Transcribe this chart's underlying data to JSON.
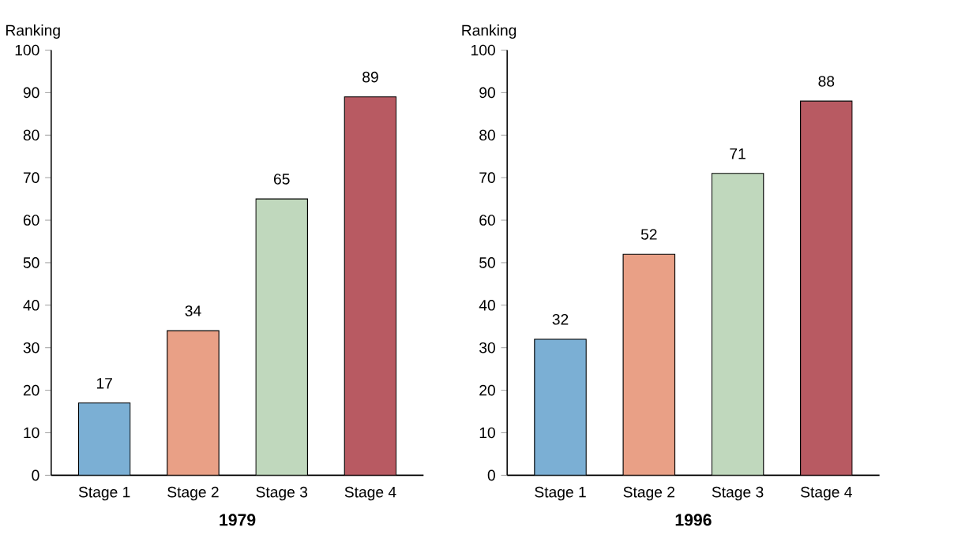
{
  "chart_data": [
    {
      "type": "bar",
      "xlabel": "1979",
      "ylabel": "Ranking",
      "categories": [
        "Stage 1",
        "Stage 2",
        "Stage 3",
        "Stage 4"
      ],
      "values": [
        17,
        34,
        65,
        89
      ],
      "colors": [
        "#7bafd4",
        "#e9a086",
        "#c0d8bd",
        "#b85a62"
      ],
      "ylim": [
        0,
        100
      ],
      "yticks": [
        0,
        10,
        20,
        30,
        40,
        50,
        60,
        70,
        80,
        90,
        100
      ],
      "data_labels": true
    },
    {
      "type": "bar",
      "xlabel": "1996",
      "ylabel": "Ranking",
      "categories": [
        "Stage 1",
        "Stage 2",
        "Stage 3",
        "Stage 4"
      ],
      "values": [
        32,
        52,
        71,
        88
      ],
      "colors": [
        "#7bafd4",
        "#e9a086",
        "#c0d8bd",
        "#b85a62"
      ],
      "ylim": [
        0,
        100
      ],
      "yticks": [
        0,
        10,
        20,
        30,
        40,
        50,
        60,
        70,
        80,
        90,
        100
      ],
      "data_labels": true
    }
  ]
}
